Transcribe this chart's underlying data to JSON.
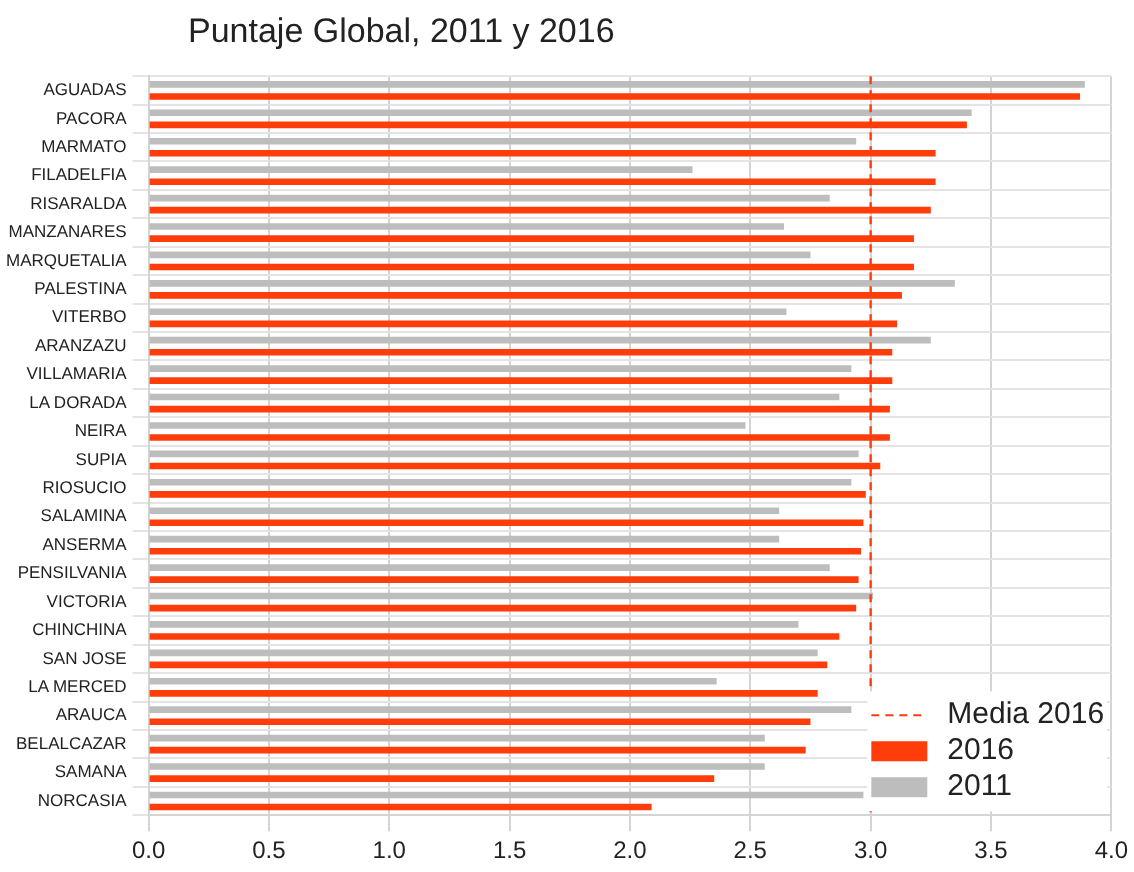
{
  "chart_data": {
    "type": "bar",
    "orientation": "horizontal",
    "title": "Puntaje Global, 2011 y 2016",
    "categories": [
      "AGUADAS",
      "PACORA",
      "MARMATO",
      "FILADELFIA",
      "RISARALDA",
      "MANZANARES",
      "MARQUETALIA",
      "PALESTINA",
      "VITERBO",
      "ARANZAZU",
      "VILLAMARIA",
      "LA DORADA",
      "NEIRA",
      "SUPIA",
      "RIOSUCIO",
      "SALAMINA",
      "ANSERMA",
      "PENSILVANIA",
      "VICTORIA",
      "CHINCHINA",
      "SAN JOSE",
      "LA MERCED",
      "ARAUCA",
      "BELALCAZAR",
      "SAMANA",
      "NORCASIA"
    ],
    "series": [
      {
        "name": "2011",
        "color": "#bdbdbd",
        "values": [
          3.89,
          3.42,
          2.94,
          2.26,
          2.83,
          2.64,
          2.75,
          3.35,
          2.65,
          3.25,
          2.92,
          2.87,
          2.48,
          2.95,
          2.92,
          2.62,
          2.62,
          2.83,
          3.01,
          2.7,
          2.78,
          2.36,
          2.92,
          2.56,
          2.56,
          2.97
        ]
      },
      {
        "name": "2016",
        "color": "#ff3d0a",
        "values": [
          3.87,
          3.4,
          3.27,
          3.27,
          3.25,
          3.18,
          3.18,
          3.13,
          3.11,
          3.09,
          3.09,
          3.08,
          3.08,
          3.04,
          2.98,
          2.97,
          2.96,
          2.95,
          2.94,
          2.87,
          2.82,
          2.78,
          2.75,
          2.73,
          2.35,
          2.09
        ]
      }
    ],
    "ref_lines": [
      {
        "axis": "x",
        "value": 3.0,
        "label": "Media 2016",
        "color": "#ff3d0a",
        "line_style": "dashed"
      }
    ],
    "xlim": [
      0,
      4
    ],
    "xticks": [
      {
        "value": 0,
        "label": "0.0"
      },
      {
        "value": 0.5,
        "label": "0.5"
      },
      {
        "value": 1,
        "label": "1.0"
      },
      {
        "value": 1.5,
        "label": "1.5"
      },
      {
        "value": 2,
        "label": "2.0"
      },
      {
        "value": 2.5,
        "label": "2.5"
      },
      {
        "value": 3,
        "label": "3.0"
      },
      {
        "value": 3.5,
        "label": "3.5"
      },
      {
        "value": 4,
        "label": "4.0"
      }
    ],
    "grid": true,
    "legend": "bottom right"
  }
}
